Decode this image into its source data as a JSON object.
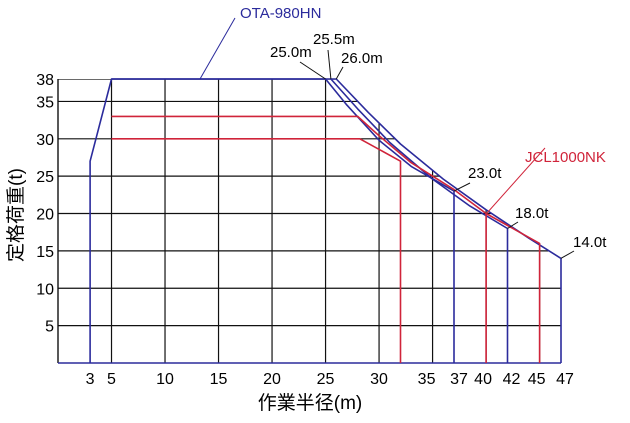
{
  "chart_data": {
    "type": "line",
    "xlabel": "作業半径(m)",
    "ylabel": "定格荷重(t)",
    "xlim": [
      0,
      47
    ],
    "ylim": [
      0,
      38
    ],
    "grid": true,
    "x_ticks": [
      3,
      5,
      10,
      15,
      20,
      25,
      30,
      35,
      37,
      40,
      42,
      45,
      47
    ],
    "y_ticks": [
      5,
      10,
      15,
      20,
      25,
      30,
      35,
      38
    ],
    "series": [
      {
        "name": "OTA-980HN",
        "color": "#2b2b9c",
        "points": [
          [
            3,
            0
          ],
          [
            3,
            27
          ],
          [
            5,
            38
          ],
          [
            25,
            38
          ],
          [
            27,
            34.5
          ],
          [
            30,
            29.8
          ],
          [
            33,
            26.3
          ],
          [
            37,
            23
          ],
          [
            37,
            0
          ]
        ]
      },
      {
        "name": "OTA-980HN",
        "color": "#2b2b9c",
        "points": [
          [
            25.5,
            38
          ],
          [
            28,
            34
          ],
          [
            31,
            29.5
          ],
          [
            35,
            24.6
          ],
          [
            38.5,
            21
          ],
          [
            42,
            18
          ],
          [
            42,
            0
          ]
        ]
      },
      {
        "name": "OTA-980HN",
        "color": "#2b2b9c",
        "points": [
          [
            5,
            38
          ],
          [
            26,
            38
          ],
          [
            29,
            33.5
          ],
          [
            32,
            29.3
          ],
          [
            36,
            24.6
          ],
          [
            40,
            20.5
          ],
          [
            44,
            16.7
          ],
          [
            47,
            14
          ],
          [
            47,
            0
          ]
        ]
      },
      {
        "name": "JCL1000NK",
        "color": "#d0243a",
        "points": [
          [
            5,
            33
          ],
          [
            28,
            33
          ],
          [
            30,
            30.4
          ],
          [
            33,
            26.8
          ],
          [
            37,
            23.2
          ],
          [
            40,
            20
          ],
          [
            45,
            16
          ],
          [
            45,
            0
          ]
        ]
      },
      {
        "name": "JCL1000NK",
        "color": "#d0243a",
        "points": [
          [
            5,
            30
          ],
          [
            28.2,
            30
          ],
          [
            32,
            27
          ],
          [
            32,
            0
          ]
        ]
      },
      {
        "name": "JCL1000NK",
        "color": "#d0243a",
        "points": [
          [
            40,
            20
          ],
          [
            40,
            0
          ]
        ]
      }
    ],
    "annotations": [
      {
        "text": "OTA-980HN",
        "color": "#2b2b9c",
        "target": [
          13.5,
          38
        ]
      },
      {
        "text": "JCL1000NK",
        "color": "#d0243a",
        "target": [
          40,
          20
        ]
      },
      {
        "text": "25.0m",
        "color": "#000000",
        "target": [
          25,
          38
        ]
      },
      {
        "text": "25.5m",
        "color": "#000000",
        "target": [
          25.5,
          38
        ]
      },
      {
        "text": "26.0m",
        "color": "#000000",
        "target": [
          26,
          38
        ]
      },
      {
        "text": "23.0t",
        "color": "#000000",
        "target": [
          37,
          23
        ]
      },
      {
        "text": "18.0t",
        "color": "#000000",
        "target": [
          42,
          18
        ]
      },
      {
        "text": "14.0t",
        "color": "#000000",
        "target": [
          47,
          14
        ]
      }
    ]
  }
}
